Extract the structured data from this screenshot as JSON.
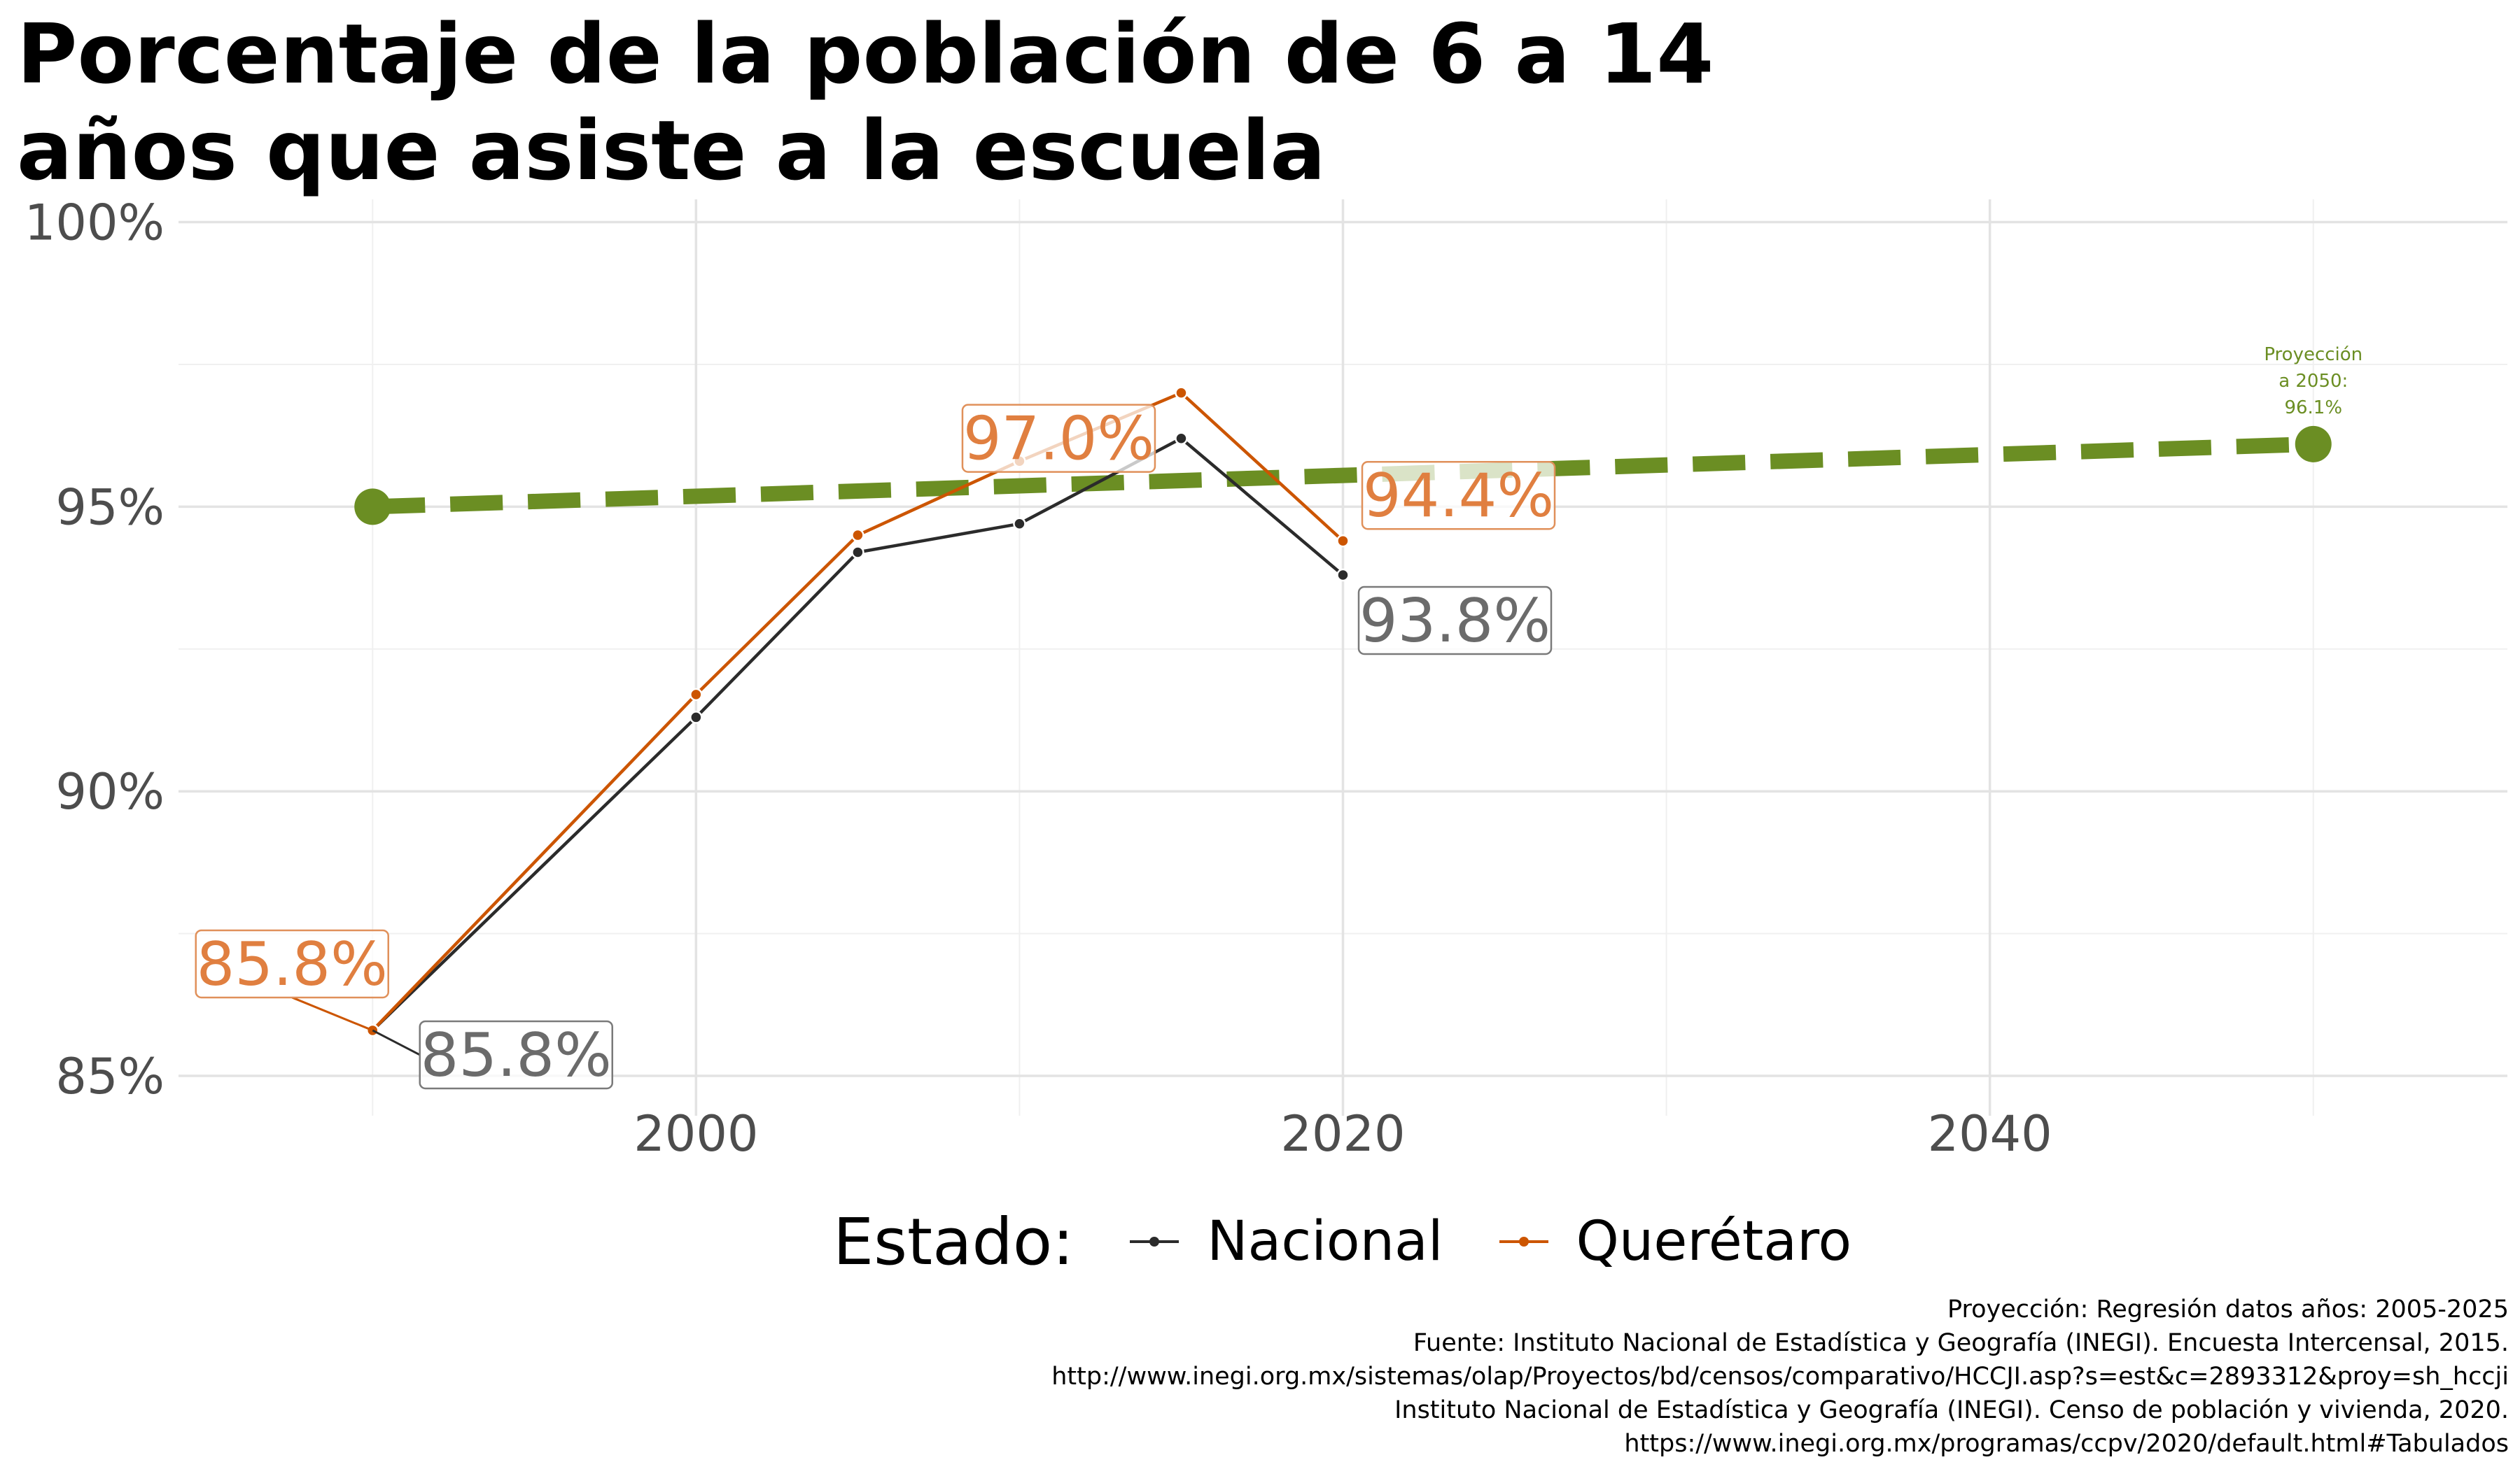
{
  "title": [
    "Porcentaje de la población de 6 a 14",
    "años que asiste a la escuela"
  ],
  "chart_data": {
    "type": "line",
    "x_ticks": [
      2000,
      2020,
      2040
    ],
    "y_ticks": [
      85,
      90,
      95,
      100
    ],
    "y_tick_labels": [
      "85%",
      "90%",
      "95%",
      "100%"
    ],
    "xlim": [
      1984,
      2056
    ],
    "ylim": [
      84.3,
      100.4
    ],
    "grid": true,
    "legend_position": "bottom",
    "series": [
      {
        "name": "Nacional",
        "color": "#2b2b2b",
        "x": [
          1990,
          2000,
          2005,
          2010,
          2015,
          2020
        ],
        "values": [
          85.8,
          91.3,
          94.2,
          94.7,
          96.2,
          93.8
        ],
        "labels": [
          {
            "x": 1990,
            "text": "85.8%"
          },
          {
            "x": 2020,
            "text": "93.8%"
          }
        ]
      },
      {
        "name": "Querétaro",
        "color": "#cc5500",
        "x": [
          1990,
          2000,
          2005,
          2010,
          2015,
          2020
        ],
        "values": [
          85.8,
          91.7,
          94.5,
          95.8,
          97.0,
          94.4
        ],
        "labels": [
          {
            "x": 1990,
            "text": "85.8%"
          },
          {
            "x": 2015,
            "text": "97.0%"
          },
          {
            "x": 2020,
            "text": "94.4%"
          }
        ]
      }
    ],
    "projection": {
      "color": "#6b8e23",
      "x": [
        1990,
        2050
      ],
      "values": [
        95.0,
        96.1
      ],
      "annotation": [
        "Proyección",
        "a 2050:",
        "96.1%"
      ]
    }
  },
  "legend": {
    "title": "Estado:",
    "items": [
      {
        "label": "Nacional",
        "color": "#2b2b2b"
      },
      {
        "label": "Querétaro",
        "color": "#cc5500"
      }
    ]
  },
  "caption": [
    "Proyección: Regresión datos años: 2005-2025",
    "Fuente: Instituto Nacional de Estadística y Geografía (INEGI). Encuesta Intercensal, 2015.",
    "http://www.inegi.org.mx/sistemas/olap/Proyectos/bd/censos/comparativo/HCCJI.asp?s=est&c=2893312&proy=sh_hccji",
    "Instituto Nacional de Estadística y Geografía (INEGI). Censo de población y vivienda, 2020.",
    "https://www.inegi.org.mx/programas/ccpv/2020/default.html#Tabulados"
  ]
}
